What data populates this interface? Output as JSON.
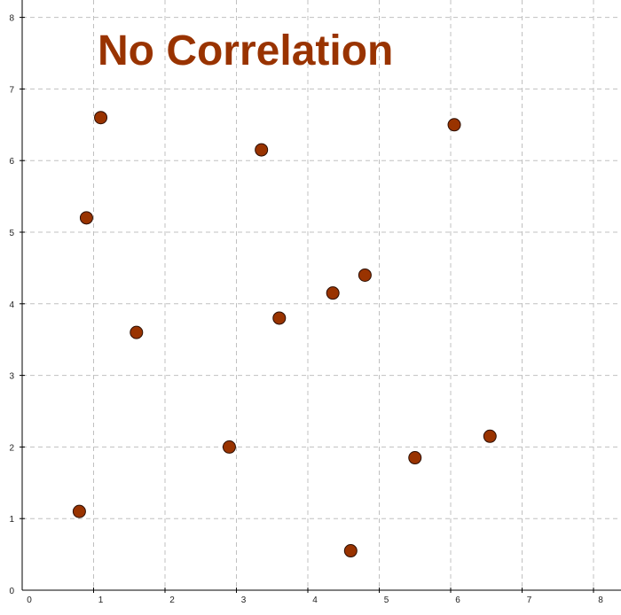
{
  "chart_data": {
    "type": "scatter",
    "title": "No Correlation",
    "xlabel": "",
    "ylabel": "",
    "xlim": [
      0,
      8
    ],
    "ylim": [
      0,
      8
    ],
    "x_ticks": [
      0,
      1,
      2,
      3,
      4,
      5,
      6,
      7,
      8
    ],
    "y_ticks": [
      0,
      1,
      2,
      3,
      4,
      5,
      6,
      7,
      8
    ],
    "grid": true,
    "marker_color": "#993300",
    "points": [
      {
        "x": 0.8,
        "y": 1.1
      },
      {
        "x": 0.9,
        "y": 5.2
      },
      {
        "x": 1.1,
        "y": 6.6
      },
      {
        "x": 1.6,
        "y": 3.6
      },
      {
        "x": 2.9,
        "y": 2.0
      },
      {
        "x": 3.35,
        "y": 6.15
      },
      {
        "x": 3.6,
        "y": 3.8
      },
      {
        "x": 4.35,
        "y": 4.15
      },
      {
        "x": 4.6,
        "y": 0.55
      },
      {
        "x": 4.8,
        "y": 4.4
      },
      {
        "x": 5.5,
        "y": 1.85
      },
      {
        "x": 6.05,
        "y": 6.5
      },
      {
        "x": 6.55,
        "y": 2.15
      }
    ]
  }
}
